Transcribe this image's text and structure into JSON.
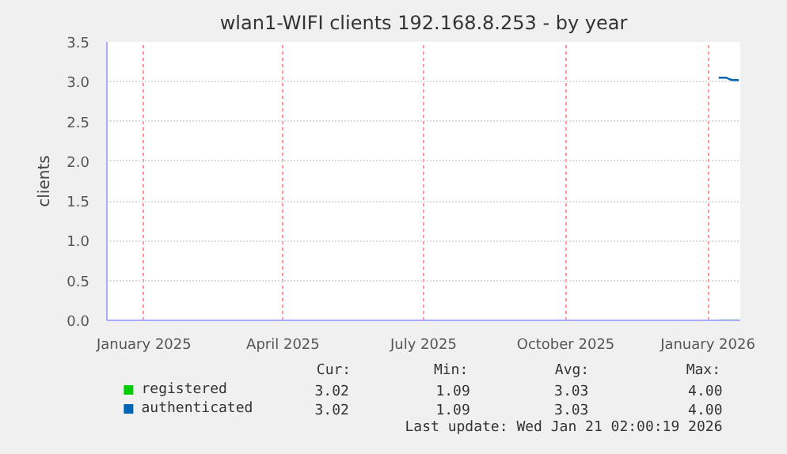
{
  "chart_data": {
    "type": "line",
    "title": "wlan1-WIFI clients 192.168.8.253 - by year",
    "ylabel": "clients",
    "x": [
      "2026-01-08",
      "2026-01-13",
      "2026-01-15",
      "2026-01-17",
      "2026-01-21"
    ],
    "series": [
      {
        "name": "registered",
        "color": "#00cc00",
        "values": [
          null,
          null,
          null,
          null,
          null
        ]
      },
      {
        "name": "authenticated",
        "color": "#0066b3",
        "values": [
          3.05,
          3.05,
          3.03,
          3.02,
          3.02
        ]
      }
    ],
    "xlim": [
      "2024-12-08",
      "2026-01-22"
    ],
    "xticks": [
      {
        "value": "2025-01-01",
        "label": "January 2025"
      },
      {
        "value": "2025-04-01",
        "label": "April 2025"
      },
      {
        "value": "2025-07-01",
        "label": "July 2025"
      },
      {
        "value": "2025-10-01",
        "label": "October 2025"
      },
      {
        "value": "2026-01-01",
        "label": "January 2026"
      }
    ],
    "ylim": [
      0,
      3.5
    ],
    "yticks": [
      {
        "value": 0,
        "label": "0.0"
      },
      {
        "value": 0.5,
        "label": "0.5"
      },
      {
        "value": 1,
        "label": "1.0"
      },
      {
        "value": 1.5,
        "label": "1.5"
      },
      {
        "value": 2,
        "label": "2.0"
      },
      {
        "value": 2.5,
        "label": "2.5"
      },
      {
        "value": 3,
        "label": "3.0"
      },
      {
        "value": 3.5,
        "label": "3.5"
      }
    ],
    "grid": true,
    "legend": "bottom",
    "marker": "none",
    "line_style": "solid",
    "annotations": [
      "Cur:",
      "Min:",
      "Avg:",
      "Max:",
      "3.02",
      "1.09",
      "3.03",
      "4.00",
      "3.02",
      "1.09",
      "3.03",
      "4.00",
      "Last update: Wed Jan 21 02:00:19 2026"
    ]
  }
}
